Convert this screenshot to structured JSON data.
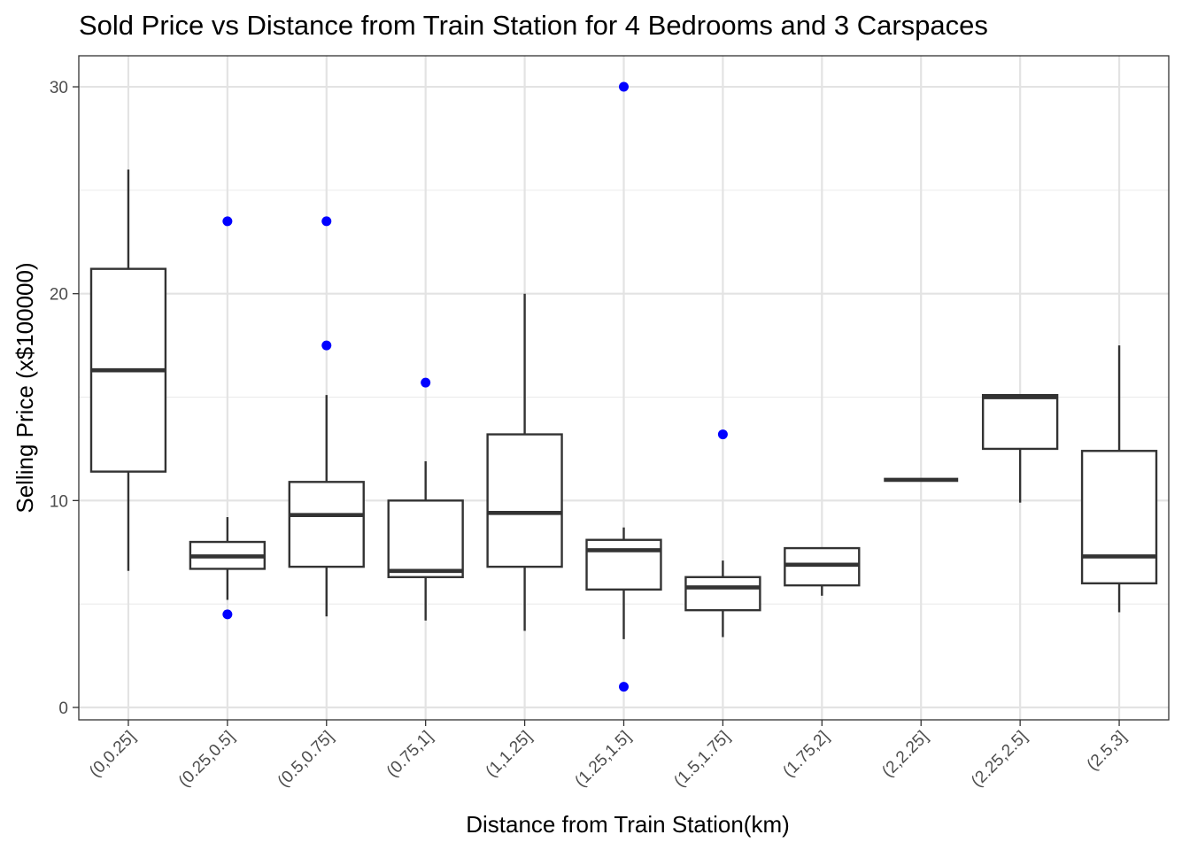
{
  "chart_data": {
    "type": "boxplot",
    "title": "Sold Price vs Distance from Train Station for 4 Bedrooms and 3 Carspaces",
    "xlabel": "Distance from Train Station(km)",
    "ylabel": "Selling Price (x$100000)",
    "ylim": [
      -0.6,
      31.5
    ],
    "yticks": [
      0,
      10,
      20,
      30
    ],
    "grid": true,
    "outlier_color": "#0000ff",
    "categories": [
      "(0,0.25]",
      "(0.25,0.5]",
      "(0.5,0.75]",
      "(0.75,1]",
      "(1,1.25]",
      "(1.25,1.5]",
      "(1.5,1.75]",
      "(1.75,2]",
      "(2,2.25]",
      "(2.25,2.5]",
      "(2.5,3]"
    ],
    "boxes": [
      {
        "lower": 6.6,
        "q1": 11.4,
        "median": 16.3,
        "q3": 21.2,
        "upper": 26.0,
        "outliers": []
      },
      {
        "lower": 5.2,
        "q1": 6.7,
        "median": 7.3,
        "q3": 8.0,
        "upper": 9.2,
        "outliers": [
          23.5,
          4.5
        ]
      },
      {
        "lower": 4.4,
        "q1": 6.8,
        "median": 9.3,
        "q3": 10.9,
        "upper": 15.1,
        "outliers": [
          23.5,
          17.5
        ]
      },
      {
        "lower": 4.2,
        "q1": 6.3,
        "median": 6.6,
        "q3": 10.0,
        "upper": 11.9,
        "outliers": [
          15.7
        ]
      },
      {
        "lower": 3.7,
        "q1": 6.8,
        "median": 9.4,
        "q3": 13.2,
        "upper": 20.0,
        "outliers": []
      },
      {
        "lower": 3.3,
        "q1": 5.7,
        "median": 7.6,
        "q3": 8.1,
        "upper": 8.7,
        "outliers": [
          30.0,
          1.0
        ]
      },
      {
        "lower": 3.4,
        "q1": 4.7,
        "median": 5.8,
        "q3": 6.3,
        "upper": 7.1,
        "outliers": [
          13.2
        ]
      },
      {
        "lower": 5.4,
        "q1": 5.9,
        "median": 6.9,
        "q3": 7.7,
        "upper": 7.7,
        "outliers": []
      },
      {
        "lower": 11.0,
        "q1": 11.0,
        "median": 11.0,
        "q3": 11.0,
        "upper": 11.0,
        "outliers": []
      },
      {
        "lower": 9.9,
        "q1": 12.5,
        "median": 15.0,
        "q3": 15.1,
        "upper": 15.1,
        "outliers": []
      },
      {
        "lower": 4.6,
        "q1": 6.0,
        "median": 7.3,
        "q3": 12.4,
        "upper": 17.5,
        "outliers": []
      }
    ]
  }
}
